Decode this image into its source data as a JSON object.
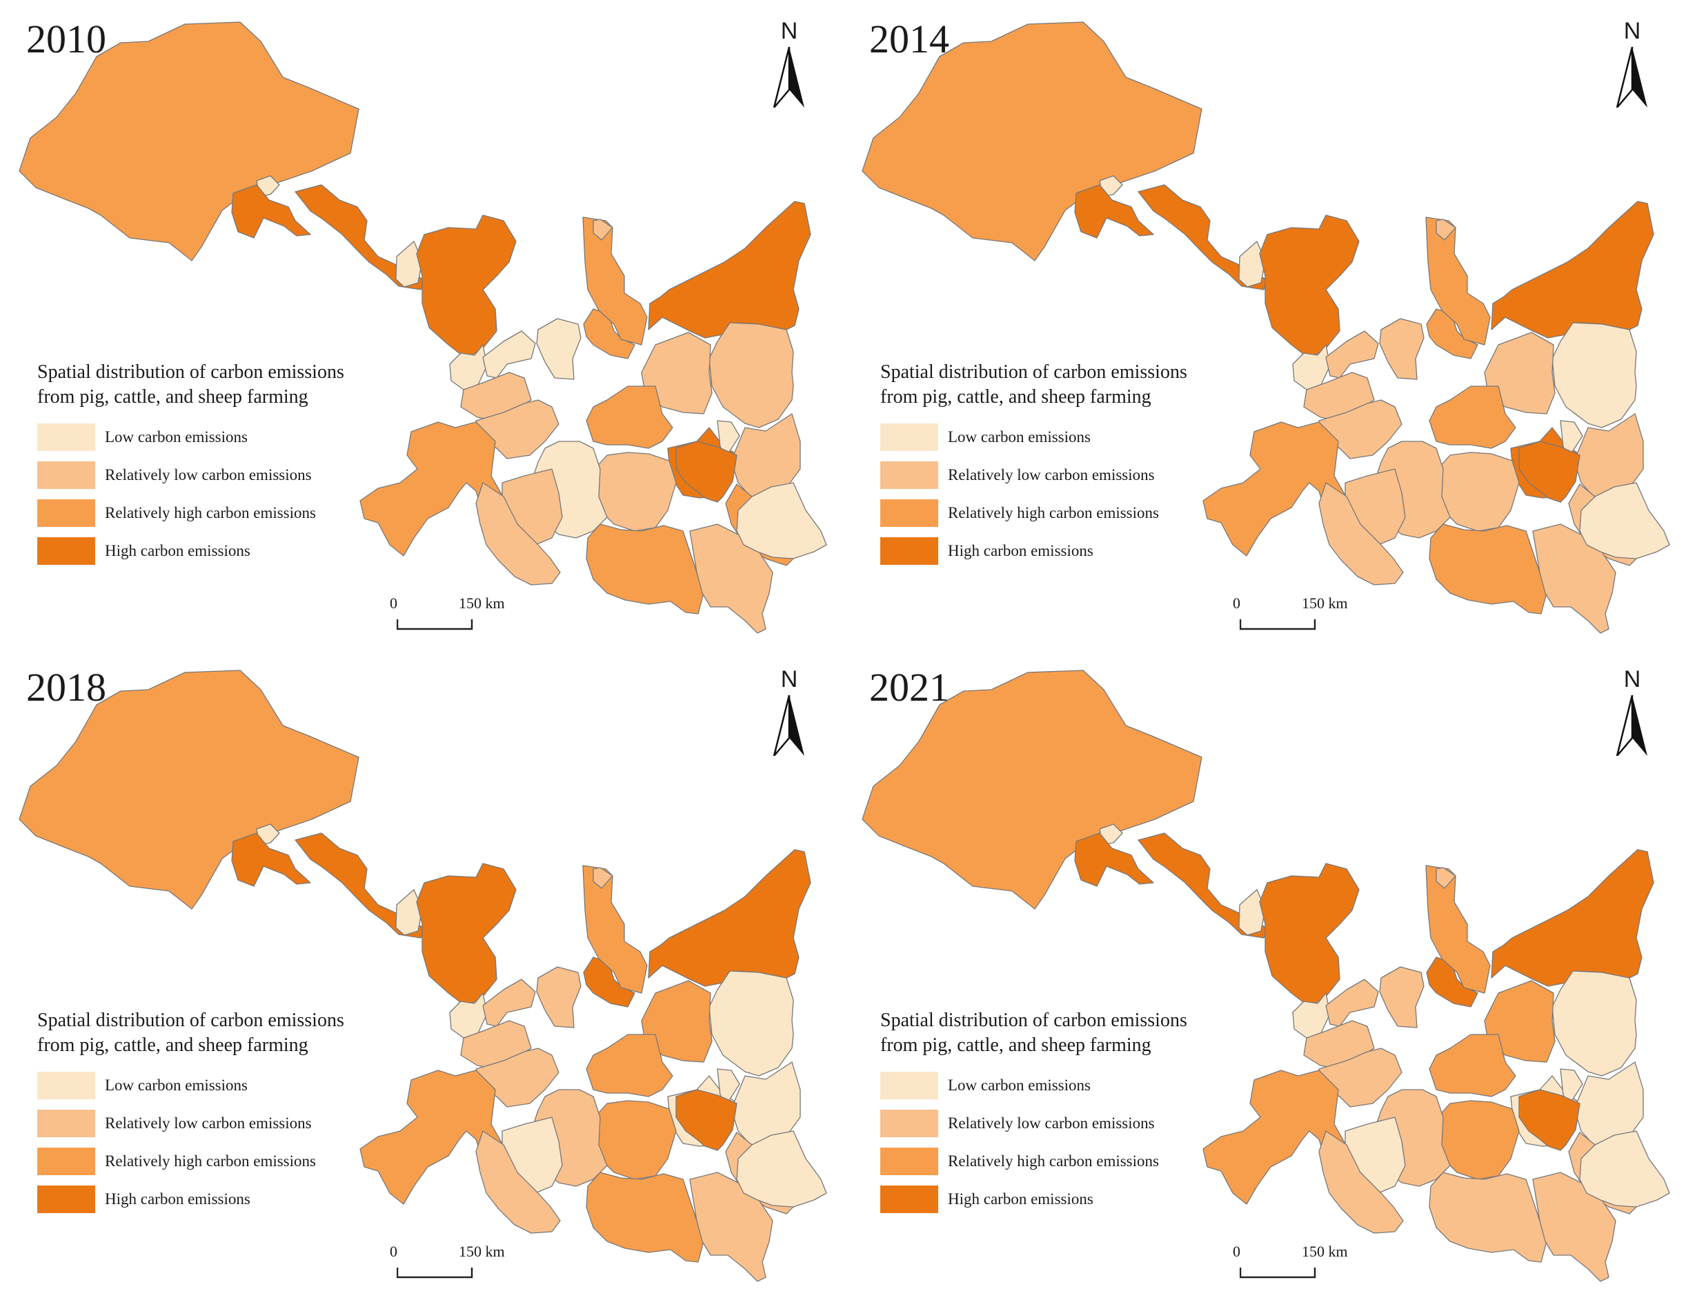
{
  "colors": {
    "low": "#fbe6c8",
    "rel_low": "#f9c08c",
    "rel_high": "#f79e4d",
    "high": "#eb7713",
    "border": "#777777"
  },
  "legend": {
    "title_line1": "Spatial distribution of carbon emissions",
    "title_line2": "from pig, cattle, and sheep farming",
    "items": [
      {
        "label": "Low carbon emissions",
        "level": "low"
      },
      {
        "label": "Relatively low carbon emissions",
        "level": "rel_low"
      },
      {
        "label": "Relatively high carbon emissions",
        "level": "rel_high"
      },
      {
        "label": "High carbon emissions",
        "level": "high"
      }
    ]
  },
  "north_label": "N",
  "scale": {
    "zero": "0",
    "distance": "150 km"
  },
  "panels": [
    {
      "year": "2010",
      "regions": {
        "r_nw": "rel_high",
        "r_s1": "low",
        "r_a": "high",
        "r_b": "high",
        "r_c": "low",
        "r_d": "high",
        "r_e": "low",
        "r_f": "low",
        "r_g": "rel_low",
        "r_h": "low",
        "r_i": "rel_high",
        "r_j": "high",
        "r_k": "rel_high",
        "r_l": "rel_low",
        "r_m": "rel_low",
        "r_n": "rel_low",
        "r_o": "rel_high",
        "r_p": "high",
        "r_q": "low",
        "r_r": "rel_low",
        "r_s": "rel_high",
        "r_t": "rel_low",
        "r_u": "rel_high",
        "r_v": "high",
        "r_w": "rel_low",
        "r_x": "low",
        "r_y": "rel_high",
        "r_z": "rel_low",
        "r_aa": "rel_low",
        "r_ab": "rel_high",
        "r_ac": "rel_low",
        "r_ad": "low"
      }
    },
    {
      "year": "2014",
      "regions": {
        "r_nw": "rel_high",
        "r_s1": "low",
        "r_a": "high",
        "r_b": "high",
        "r_c": "low",
        "r_d": "high",
        "r_e": "low",
        "r_f": "rel_low",
        "r_g": "rel_low",
        "r_h": "rel_low",
        "r_i": "rel_high",
        "r_j": "high",
        "r_k": "rel_high",
        "r_l": "rel_low",
        "r_m": "low",
        "r_n": "rel_low",
        "r_o": "rel_high",
        "r_p": "high",
        "r_q": "low",
        "r_r": "rel_low",
        "r_s": "rel_high",
        "r_t": "rel_low",
        "r_u": "rel_high",
        "r_v": "high",
        "r_w": "rel_low",
        "r_x": "rel_low",
        "r_y": "rel_low",
        "r_z": "rel_low",
        "r_aa": "rel_low",
        "r_ab": "rel_high",
        "r_ac": "rel_low",
        "r_ad": "low"
      }
    },
    {
      "year": "2018",
      "regions": {
        "r_nw": "rel_high",
        "r_s1": "low",
        "r_a": "high",
        "r_b": "high",
        "r_c": "low",
        "r_d": "high",
        "r_e": "low",
        "r_f": "rel_low",
        "r_g": "rel_low",
        "r_h": "rel_low",
        "r_i": "high",
        "r_j": "high",
        "r_k": "rel_high",
        "r_l": "rel_low",
        "r_m": "low",
        "r_n": "rel_high",
        "r_o": "rel_high",
        "r_p": "low",
        "r_q": "low",
        "r_r": "low",
        "r_s": "rel_high",
        "r_t": "rel_low",
        "r_u": "rel_high",
        "r_v": "high",
        "r_w": "rel_high",
        "r_x": "rel_low",
        "r_y": "rel_low",
        "r_z": "low",
        "r_aa": "rel_low",
        "r_ab": "rel_high",
        "r_ac": "rel_low",
        "r_ad": "low"
      }
    },
    {
      "year": "2021",
      "regions": {
        "r_nw": "rel_high",
        "r_s1": "low",
        "r_a": "high",
        "r_b": "high",
        "r_c": "low",
        "r_d": "high",
        "r_e": "low",
        "r_f": "rel_low",
        "r_g": "rel_low",
        "r_h": "rel_low",
        "r_i": "high",
        "r_j": "high",
        "r_k": "rel_high",
        "r_l": "rel_low",
        "r_m": "low",
        "r_n": "rel_high",
        "r_o": "rel_high",
        "r_p": "low",
        "r_q": "low",
        "r_r": "low",
        "r_s": "rel_high",
        "r_t": "rel_low",
        "r_u": "rel_high",
        "r_v": "high",
        "r_w": "rel_high",
        "r_x": "rel_low",
        "r_y": "rel_low",
        "r_z": "low",
        "r_aa": "rel_low",
        "r_ab": "rel_low",
        "r_ac": "rel_low",
        "r_ad": "low"
      }
    }
  ]
}
